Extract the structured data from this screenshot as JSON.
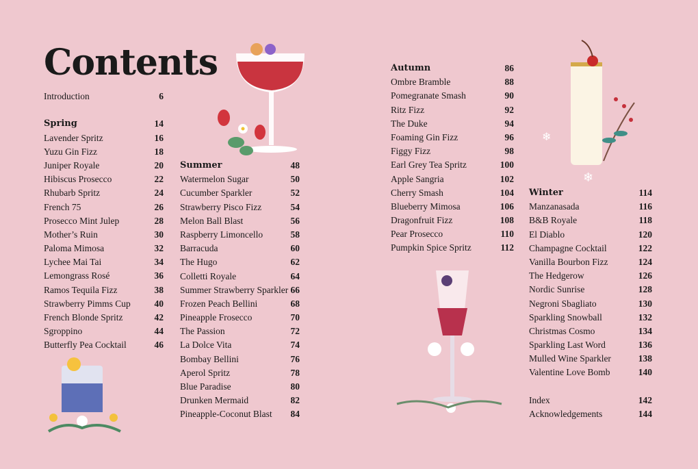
{
  "title": "Contents",
  "columns": [
    {
      "rows": [
        {
          "t": "Introduction",
          "p": "6"
        },
        {
          "gap": true
        },
        {
          "t": "Spring",
          "p": "14",
          "h": true
        },
        {
          "t": "Lavender Spritz",
          "p": "16"
        },
        {
          "t": "Yuzu Gin Fizz",
          "p": "18"
        },
        {
          "t": "Juniper Royale",
          "p": "20"
        },
        {
          "t": "Hibiscus Prosecco",
          "p": "22"
        },
        {
          "t": "Rhubarb Spritz",
          "p": "24"
        },
        {
          "t": "French 75",
          "p": "26"
        },
        {
          "t": "Prosecco Mint Julep",
          "p": "28"
        },
        {
          "t": "Mother’s Ruin",
          "p": "30"
        },
        {
          "t": "Paloma Mimosa",
          "p": "32"
        },
        {
          "t": "Lychee Mai Tai",
          "p": "34"
        },
        {
          "t": "Lemongrass Rosé",
          "p": "36"
        },
        {
          "t": "Ramos Tequila Fizz",
          "p": "38"
        },
        {
          "t": "Strawberry Pimms Cup",
          "p": "40"
        },
        {
          "t": "French Blonde Spritz",
          "p": "42"
        },
        {
          "t": "Sgroppino",
          "p": "44"
        },
        {
          "t": "Butterfly Pea Cocktail",
          "p": "46"
        }
      ]
    },
    {
      "rows": [
        {
          "t": "Summer",
          "p": "48",
          "h": true
        },
        {
          "t": "Watermelon Sugar",
          "p": "50"
        },
        {
          "t": "Cucumber Sparkler",
          "p": "52"
        },
        {
          "t": "Strawberry Pisco Fizz",
          "p": "54"
        },
        {
          "t": "Melon Ball Blast",
          "p": "56"
        },
        {
          "t": "Raspberry Limoncello",
          "p": "58"
        },
        {
          "t": "Barracuda",
          "p": "60"
        },
        {
          "t": "The Hugo",
          "p": "62"
        },
        {
          "t": "Colletti Royale",
          "p": "64"
        },
        {
          "t": "Summer Strawberry Sparkler",
          "p": "66"
        },
        {
          "t": "Frozen Peach Bellini",
          "p": "68"
        },
        {
          "t": "Pineapple Frosecco",
          "p": "70"
        },
        {
          "t": "The Passion",
          "p": "72"
        },
        {
          "t": "La Dolce Vita",
          "p": "74"
        },
        {
          "t": "Bombay Bellini",
          "p": "76"
        },
        {
          "t": "Aperol Spritz",
          "p": "78"
        },
        {
          "t": "Blue Paradise",
          "p": "80"
        },
        {
          "t": "Drunken Mermaid",
          "p": "82"
        },
        {
          "t": "Pineapple-Coconut Blast",
          "p": "84"
        }
      ]
    },
    {
      "rows": [
        {
          "t": "Autumn",
          "p": "86",
          "h": true
        },
        {
          "t": "Ombre Bramble",
          "p": "88"
        },
        {
          "t": "Pomegranate Smash",
          "p": "90"
        },
        {
          "t": "Ritz Fizz",
          "p": "92"
        },
        {
          "t": "The Duke",
          "p": "94"
        },
        {
          "t": "Foaming Gin Fizz",
          "p": "96"
        },
        {
          "t": "Figgy Fizz",
          "p": "98"
        },
        {
          "t": "Earl Grey Tea Spritz",
          "p": "100"
        },
        {
          "t": "Apple Sangria",
          "p": "102"
        },
        {
          "t": "Cherry Smash",
          "p": "104"
        },
        {
          "t": "Blueberry Mimosa",
          "p": "106"
        },
        {
          "t": "Dragonfruit Fizz",
          "p": "108"
        },
        {
          "t": "Pear Prosecco",
          "p": "110"
        },
        {
          "t": "Pumpkin Spice Spritz",
          "p": "112"
        }
      ]
    },
    {
      "rows": [
        {
          "t": "Winter",
          "p": "114",
          "h": true
        },
        {
          "t": "Manzanasada",
          "p": "116"
        },
        {
          "t": "B&B Royale",
          "p": "118"
        },
        {
          "t": "El Diablo",
          "p": "120"
        },
        {
          "t": "Champagne Cocktail",
          "p": "122"
        },
        {
          "t": "Vanilla Bourbon Fizz",
          "p": "124"
        },
        {
          "t": "The Hedgerow",
          "p": "126"
        },
        {
          "t": "Nordic Sunrise",
          "p": "128"
        },
        {
          "t": "Negroni Sbagliato",
          "p": "130"
        },
        {
          "t": "Sparkling Snowball",
          "p": "132"
        },
        {
          "t": "Christmas Cosmo",
          "p": "134"
        },
        {
          "t": "Sparkling Last Word",
          "p": "136"
        },
        {
          "t": "Mulled Wine Sparkler",
          "p": "138"
        },
        {
          "t": "Valentine Love Bomb",
          "p": "140"
        },
        {
          "gap": true
        },
        {
          "t": "Index",
          "p": "142"
        },
        {
          "t": "Acknowledgements",
          "p": "144"
        }
      ]
    }
  ],
  "colors": {
    "background": "#efc8cf",
    "text": "#1a1a1a"
  }
}
